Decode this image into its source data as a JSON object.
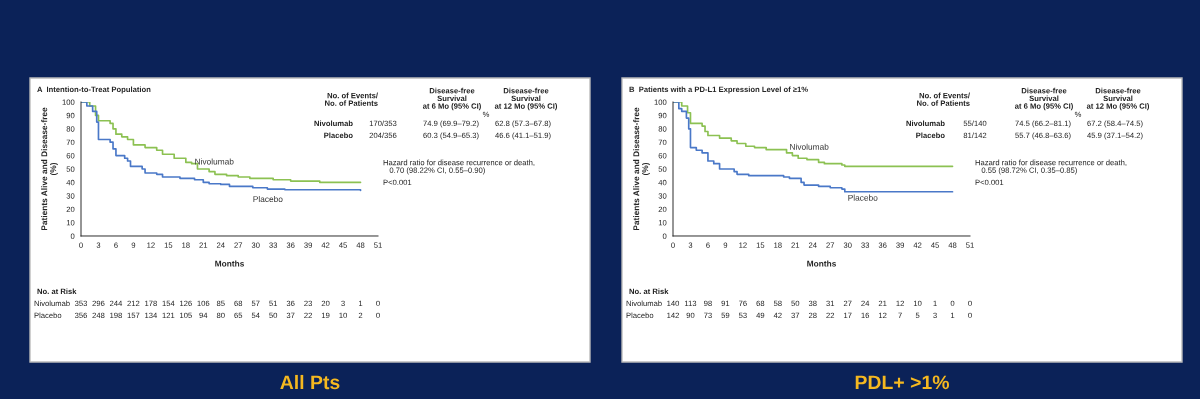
{
  "chart_data": [
    {
      "type": "step",
      "title": "A  Intention-to-Treat Population",
      "xlabel": "Months",
      "ylabel": "Patients Alive and Disease-free\n(%)",
      "xlim": [
        0,
        51
      ],
      "xticks": [
        0,
        3,
        6,
        9,
        12,
        15,
        18,
        21,
        24,
        27,
        30,
        33,
        36,
        39,
        42,
        45,
        48,
        51
      ],
      "ylim": [
        0,
        100
      ],
      "yticks": [
        0,
        10,
        20,
        30,
        40,
        50,
        60,
        70,
        80,
        90,
        100
      ],
      "grid": false,
      "legend": false,
      "series": [
        {
          "name": "Nivolumab",
          "color": "#8cc152",
          "x": [
            0,
            1.5,
            2.5,
            3,
            5,
            5.5,
            6,
            7,
            8,
            9,
            11,
            13,
            14,
            16,
            18,
            19,
            20,
            22,
            23,
            25,
            27,
            29,
            33,
            36,
            41,
            48
          ],
          "values": [
            100,
            97,
            90,
            86,
            84,
            80,
            76,
            74,
            72,
            68,
            66,
            64,
            61,
            58,
            55,
            54,
            50,
            48,
            46,
            45,
            44,
            43,
            42,
            41,
            40,
            40
          ]
        },
        {
          "name": "Placebo",
          "color": "#4a78c8",
          "x": [
            0,
            1,
            2,
            2.7,
            3,
            5,
            5.5,
            6,
            7.5,
            8,
            8.5,
            10.5,
            11,
            13,
            14,
            17,
            19.5,
            21,
            22,
            24,
            25.5,
            29.5,
            32,
            35,
            48
          ],
          "values": [
            100,
            97,
            93,
            85,
            72,
            70,
            65,
            60,
            58,
            56,
            52,
            50,
            47,
            46,
            44,
            43,
            42,
            40,
            39,
            38.5,
            37,
            36,
            35,
            34.5,
            34
          ]
        }
      ],
      "annotations": [
        "No. of Events/\nNo. of Patients",
        "Disease-free\nSurvival\nat 6 Mo (95% CI)",
        "Disease-free\nSurvival\nat 12 Mo (95% CI)",
        "%",
        "Nivolumab",
        "Placebo",
        "170/353",
        "204/356",
        "74.9 (69.9–79.2)",
        "60.3 (54.9–65.3)",
        "62.8 (57.3–67.8)",
        "46.6 (41.1–51.9)",
        "Hazard ratio for disease recurrence or death,\n   0.70 (98.22% CI, 0.55–0.90)",
        "P<0.001",
        "No. at Risk",
        "Nivolumab",
        "Placebo",
        "353 296 244 212 178 154 126 106 85 68 57 51 36 23 20 3 1 0",
        "356 248 198 157 134 121 105 94 80 65 54 50 37 22 19 10 2 0",
        "All Pts"
      ]
    },
    {
      "type": "step",
      "title": "B  Patients with a PD-L1 Expression Level of ≥1%",
      "xlabel": "Months",
      "ylabel": "Patients Alive and Disease-free\n(%)",
      "xlim": [
        0,
        51
      ],
      "xticks": [
        0,
        3,
        6,
        9,
        12,
        15,
        18,
        21,
        24,
        27,
        30,
        33,
        36,
        39,
        42,
        45,
        48,
        51
      ],
      "ylim": [
        0,
        100
      ],
      "yticks": [
        0,
        10,
        20,
        30,
        40,
        50,
        60,
        70,
        80,
        90,
        100
      ],
      "grid": false,
      "legend": false,
      "series": [
        {
          "name": "Nivolumab",
          "color": "#8cc152",
          "x": [
            0,
            1.5,
            2.5,
            3,
            5,
            5.5,
            6,
            8,
            10,
            11,
            12.5,
            14,
            16,
            19.5,
            20.5,
            21.5,
            23,
            25,
            26,
            29,
            29.5,
            48
          ],
          "values": [
            100,
            97,
            92,
            84,
            82,
            78,
            75,
            73,
            71,
            69,
            67,
            66,
            64.5,
            62,
            60,
            58,
            57,
            55,
            54,
            53,
            52,
            52
          ]
        },
        {
          "name": "Placebo",
          "color": "#4a78c8",
          "x": [
            0,
            1,
            1.5,
            2.3,
            2.7,
            3,
            4,
            5,
            6,
            7,
            8,
            10.5,
            11,
            13,
            19,
            20,
            22,
            22.5,
            25,
            27,
            29,
            29.5,
            48
          ],
          "values": [
            100,
            95,
            93,
            88,
            80,
            66,
            64,
            62,
            56,
            54,
            50,
            48,
            46,
            45,
            44,
            43,
            40,
            38,
            37,
            36,
            35,
            33,
            33
          ]
        }
      ],
      "annotations": [
        "No. of Events/\nNo. of Patients",
        "Disease-free\nSurvival\nat 6 Mo (95% CI)",
        "Disease-free\nSurvival\nat 12 Mo (95% CI)",
        "%",
        "Nivolumab",
        "Placebo",
        "55/140",
        "81/142",
        "74.5 (66.2–81.1)",
        "55.7 (46.8–63.6)",
        "67.2 (58.4–74.5)",
        "45.9 (37.1–54.2)",
        "Hazard ratio for disease recurrence or death,\n   0.55 (98.72% CI, 0.35–0.85)",
        "P<0.001",
        "No. at Risk",
        "Nivolumab",
        "Placebo",
        "140 113 98 91 76 68 58 50 38 31 27 24 21 12 10 1 0 0",
        "142 90 73 59 53 49 42 37 28 22 17 16 12 7 5 3 1 0",
        "PDL+ >1%"
      ]
    }
  ]
}
